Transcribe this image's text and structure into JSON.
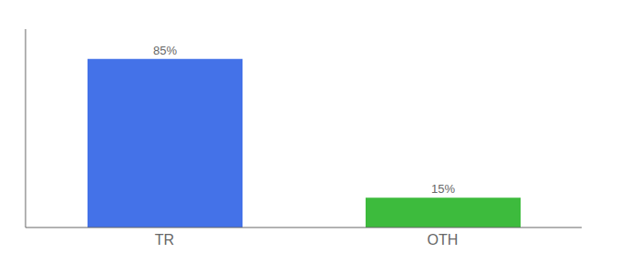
{
  "chart_data": {
    "type": "bar",
    "categories": [
      "TR",
      "OTH"
    ],
    "values": [
      85,
      15
    ],
    "value_labels": [
      "85%",
      "15%"
    ],
    "colors": [
      "#4472e8",
      "#3dbb3d"
    ],
    "ylim": [
      0,
      100
    ],
    "grid": false,
    "data_labels": true,
    "tick_labels": "x"
  }
}
